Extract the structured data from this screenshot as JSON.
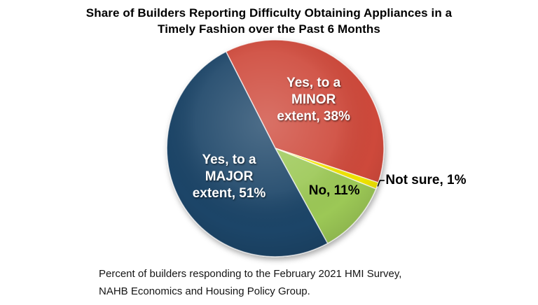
{
  "chart_data": {
    "type": "pie",
    "title": "Share of Builders Reporting Difficulty Obtaining Appliances in a Timely Fashion over the Past 6 Months",
    "title_lines": [
      "Share of Builders Reporting Difficulty Obtaining Appliances in a",
      "Timely Fashion over the Past 6 Months"
    ],
    "source_note_lines": [
      "Percent of builders responding to the February 2021 HMI Survey,",
      "NAHB Economics and Housing Policy Group."
    ],
    "unit": "%",
    "legend": "none",
    "direction": "clockwise",
    "start_angle_deg": -27,
    "slices": [
      {
        "label": "Yes, to a MINOR extent",
        "value": 38,
        "color": "#CE483B",
        "label_lines": [
          "Yes, to a",
          "MINOR",
          "extent, 38%"
        ],
        "label_color": "#FFFFFF",
        "label_position": "inside",
        "label_radius_frac": 0.61,
        "label_offset": [
          -7,
          3
        ]
      },
      {
        "label": "Not sure",
        "value": 1,
        "color": "#F0E400",
        "label_lines": [
          "Not sure, 1%"
        ],
        "label_color": "#000000",
        "label_position": "outside",
        "label_radius_frac": 1.0,
        "label_offset": [
          -6,
          -3
        ]
      },
      {
        "label": "No",
        "value": 11,
        "color": "#9CC857",
        "label_lines": [
          "No, 11%"
        ],
        "label_color": "#000000",
        "label_position": "inside",
        "label_radius_frac": 0.64,
        "label_offset": [
          10,
          -5
        ]
      },
      {
        "label": "Yes, to a MAJOR extent",
        "value": 51,
        "color": "#1D4468",
        "label_lines": [
          "Yes, to a",
          "MAJOR",
          "extent, 51%"
        ],
        "label_color": "#FFFFFF",
        "label_position": "inside",
        "label_radius_frac": 0.54,
        "label_offset": [
          8,
          2
        ]
      }
    ]
  }
}
